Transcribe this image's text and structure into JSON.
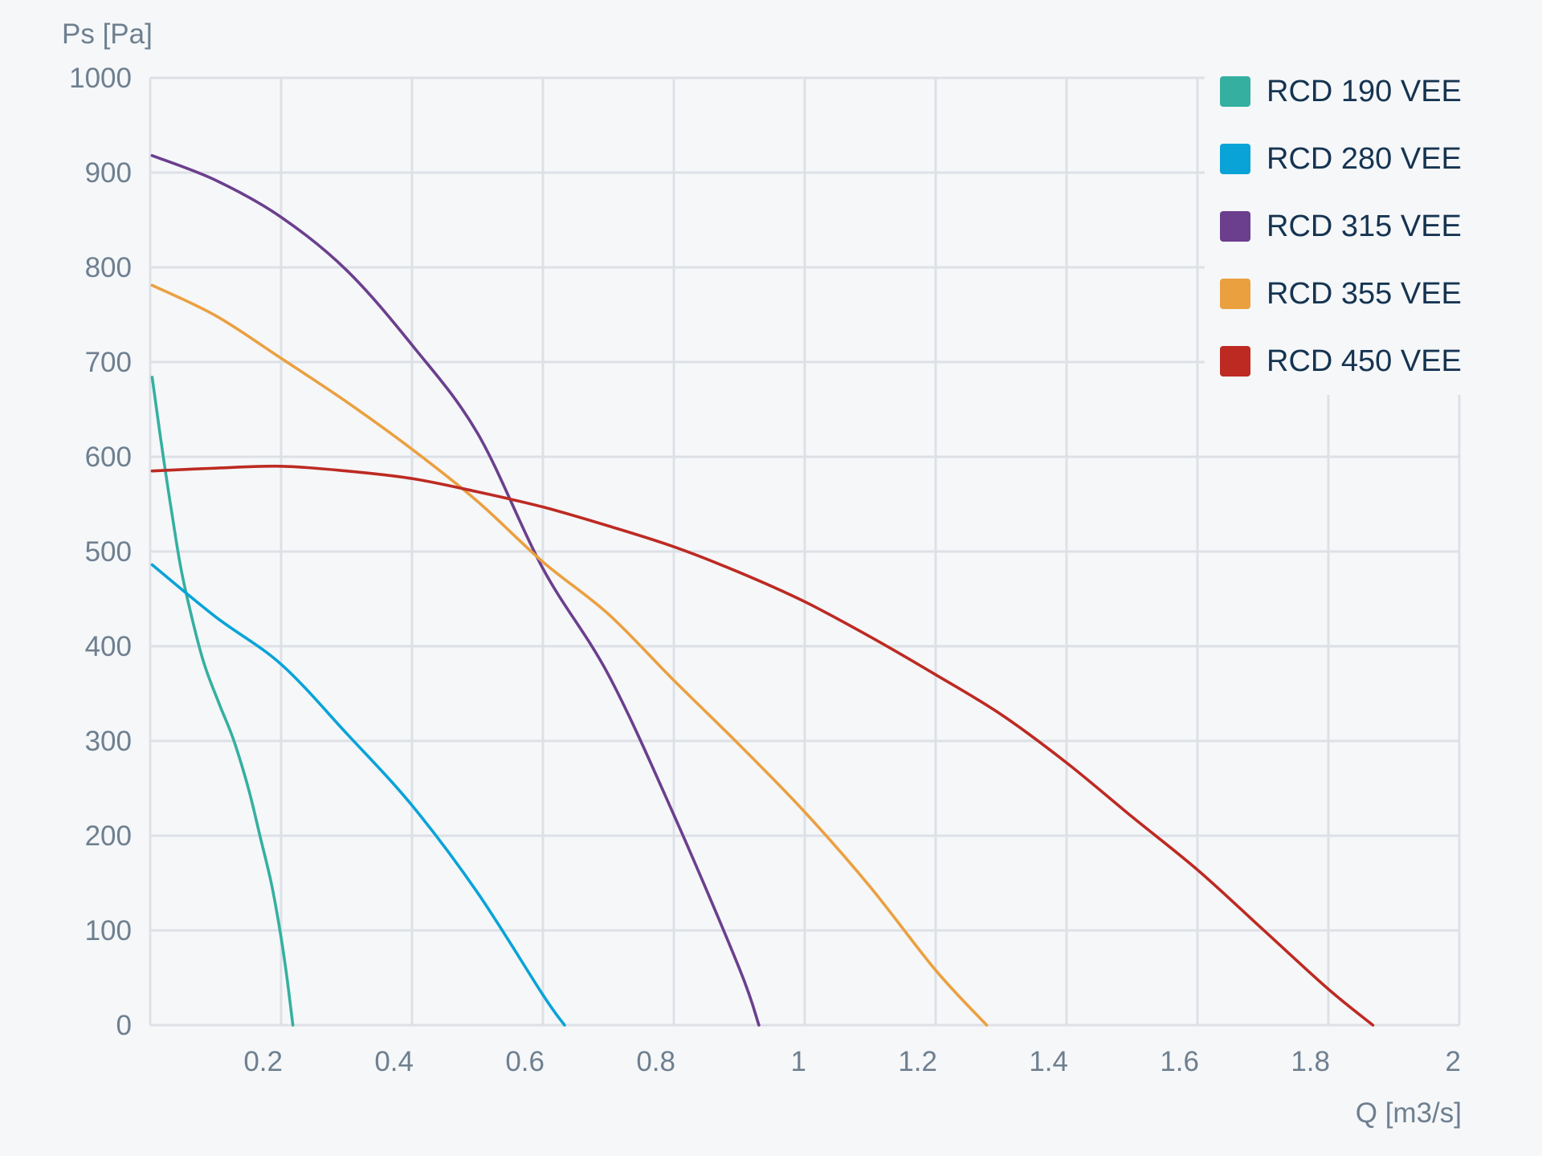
{
  "chart_data": {
    "type": "line",
    "title": "",
    "xlabel": "Q [m3/s]",
    "ylabel": "Ps [Pa]",
    "xlim": [
      0,
      2
    ],
    "ylim": [
      0,
      1000
    ],
    "x_ticks": [
      0.2,
      0.4,
      0.6,
      0.8,
      1,
      1.2,
      1.4,
      1.6,
      1.8,
      2
    ],
    "x_tick_labels": [
      "0.2",
      "0.4",
      "0.6",
      "0.8",
      "1",
      "1.2",
      "1.4",
      "1.6",
      "1.8",
      "2"
    ],
    "y_ticks": [
      0,
      100,
      200,
      300,
      400,
      500,
      600,
      700,
      800,
      900,
      1000
    ],
    "y_tick_labels": [
      "0",
      "100",
      "200",
      "300",
      "400",
      "500",
      "600",
      "700",
      "800",
      "900",
      "1000"
    ],
    "grid": true,
    "legend_position": "top-right",
    "series": [
      {
        "name": "RCD 190 VEE",
        "color": "#35b0a0",
        "points": [
          [
            0.003,
            684
          ],
          [
            0.02,
            600
          ],
          [
            0.04,
            510
          ],
          [
            0.053,
            462
          ],
          [
            0.08,
            387
          ],
          [
            0.105,
            340
          ],
          [
            0.127,
            302
          ],
          [
            0.15,
            250
          ],
          [
            0.168,
            199
          ],
          [
            0.185,
            150
          ],
          [
            0.198,
            101
          ],
          [
            0.208,
            55
          ],
          [
            0.218,
            0
          ]
        ]
      },
      {
        "name": "RCD 280 VEE",
        "color": "#0aa3d8",
        "points": [
          [
            0.003,
            486
          ],
          [
            0.1,
            431
          ],
          [
            0.2,
            381
          ],
          [
            0.3,
            308
          ],
          [
            0.4,
            232
          ],
          [
            0.5,
            140
          ],
          [
            0.6,
            32
          ],
          [
            0.633,
            0
          ]
        ]
      },
      {
        "name": "RCD 315 VEE",
        "color": "#6b3f8e",
        "points": [
          [
            0.003,
            918
          ],
          [
            0.1,
            892
          ],
          [
            0.2,
            853
          ],
          [
            0.3,
            797
          ],
          [
            0.4,
            718
          ],
          [
            0.5,
            625
          ],
          [
            0.6,
            482
          ],
          [
            0.7,
            370
          ],
          [
            0.8,
            222
          ],
          [
            0.9,
            60
          ],
          [
            0.93,
            0
          ]
        ]
      },
      {
        "name": "RCD 355 VEE",
        "color": "#eba040",
        "points": [
          [
            0.003,
            781
          ],
          [
            0.1,
            749
          ],
          [
            0.2,
            704
          ],
          [
            0.3,
            658
          ],
          [
            0.4,
            608
          ],
          [
            0.5,
            553
          ],
          [
            0.6,
            489
          ],
          [
            0.7,
            434
          ],
          [
            0.8,
            364
          ],
          [
            0.9,
            296
          ],
          [
            1.0,
            225
          ],
          [
            1.1,
            146
          ],
          [
            1.2,
            58
          ],
          [
            1.278,
            0
          ]
        ]
      },
      {
        "name": "RCD 450 VEE",
        "color": "#bd2a22",
        "points": [
          [
            0.003,
            585
          ],
          [
            0.1,
            588
          ],
          [
            0.2,
            590
          ],
          [
            0.3,
            585
          ],
          [
            0.4,
            577
          ],
          [
            0.5,
            563
          ],
          [
            0.6,
            547
          ],
          [
            0.7,
            527
          ],
          [
            0.8,
            505
          ],
          [
            0.9,
            478
          ],
          [
            1.0,
            447
          ],
          [
            1.1,
            410
          ],
          [
            1.2,
            370
          ],
          [
            1.3,
            328
          ],
          [
            1.4,
            277
          ],
          [
            1.5,
            220
          ],
          [
            1.6,
            164
          ],
          [
            1.7,
            101
          ],
          [
            1.8,
            38
          ],
          [
            1.868,
            0
          ]
        ]
      }
    ]
  },
  "legend": {
    "items": [
      {
        "label": "RCD 190 VEE",
        "color": "#35b0a0"
      },
      {
        "label": "RCD 280 VEE",
        "color": "#0aa3d8"
      },
      {
        "label": "RCD 315 VEE",
        "color": "#6b3f8e"
      },
      {
        "label": "RCD 355 VEE",
        "color": "#eba040"
      },
      {
        "label": "RCD 450 VEE",
        "color": "#bd2a22"
      }
    ]
  },
  "axes": {
    "y_title": "Ps [Pa]",
    "x_title": "Q [m3/s]"
  }
}
